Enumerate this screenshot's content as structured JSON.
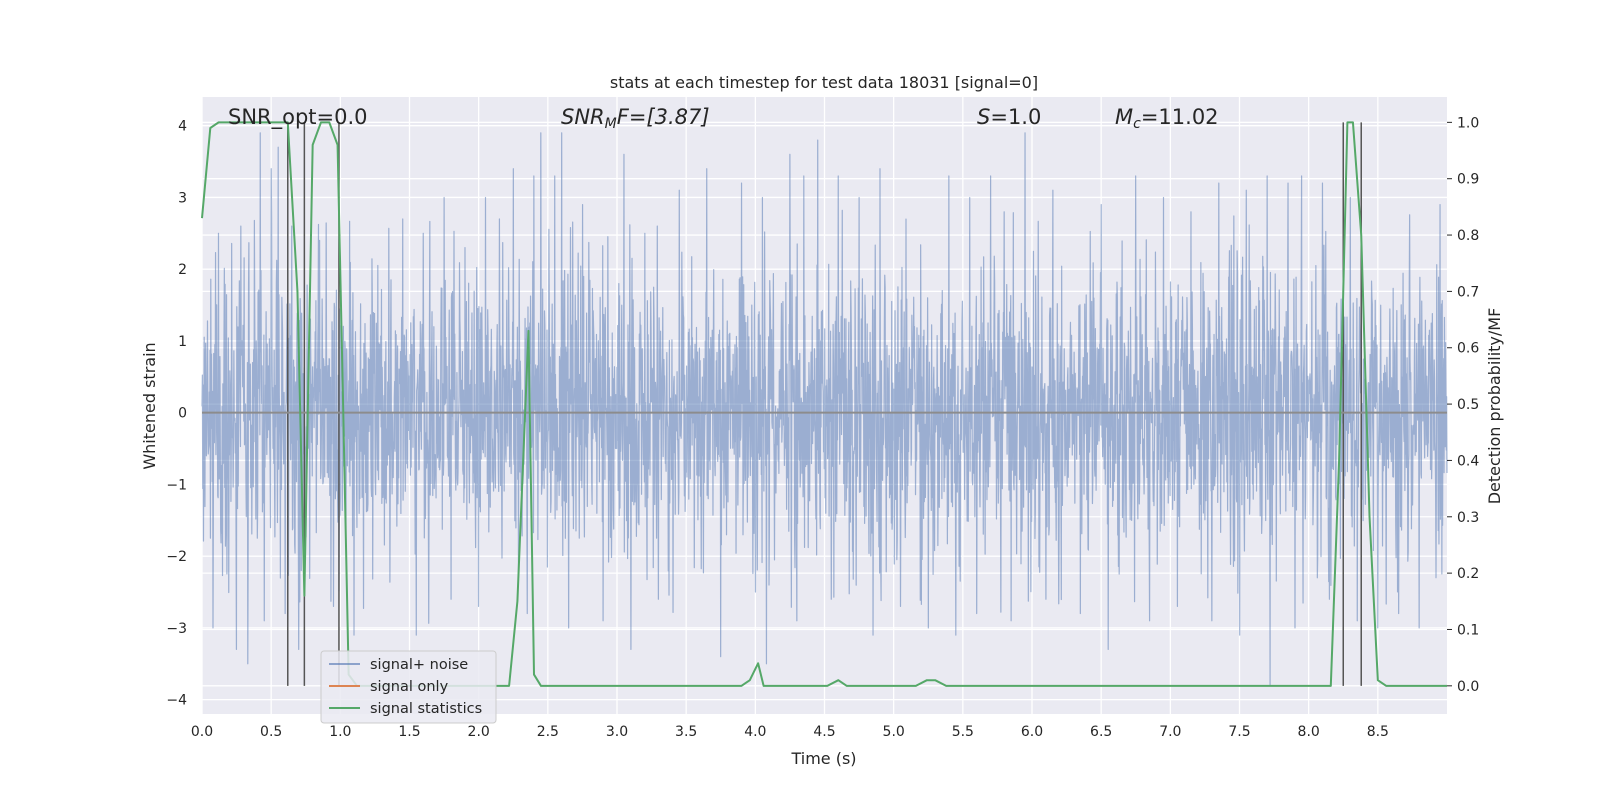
{
  "chart_data": {
    "type": "line",
    "title": "stats at each timestep for test data 18031 [signal=0]",
    "xlabel": "Time (s)",
    "ylabel_left": "Whitened strain",
    "ylabel_right": "Detection probability/MF",
    "xlim": [
      0.0,
      9.0
    ],
    "ylim_left": [
      -4.2,
      4.4
    ],
    "ylim_right": [
      -0.05,
      1.045
    ],
    "x_ticks": [
      "0.0",
      "0.5",
      "1.0",
      "1.5",
      "2.0",
      "2.5",
      "3.0",
      "3.5",
      "4.0",
      "4.5",
      "5.0",
      "5.5",
      "6.0",
      "6.5",
      "7.0",
      "7.5",
      "8.0",
      "8.5"
    ],
    "x_tick_values": [
      0.0,
      0.5,
      1.0,
      1.5,
      2.0,
      2.5,
      3.0,
      3.5,
      4.0,
      4.5,
      5.0,
      5.5,
      6.0,
      6.5,
      7.0,
      7.5,
      8.0,
      8.5
    ],
    "y_left_ticks": [
      "4",
      "3",
      "2",
      "1",
      "0",
      "−1",
      "−2",
      "−3",
      "−4"
    ],
    "y_left_tick_values": [
      4,
      3,
      2,
      1,
      0,
      -1,
      -2,
      -3,
      -4
    ],
    "y_right_ticks": [
      "1.0",
      "0.9",
      "0.8",
      "0.7",
      "0.6",
      "0.5",
      "0.4",
      "0.3",
      "0.2",
      "0.1",
      "0.0"
    ],
    "y_right_tick_values": [
      1.0,
      0.9,
      0.8,
      0.7,
      0.6,
      0.5,
      0.4,
      0.3,
      0.2,
      0.1,
      0.0
    ],
    "grid": true,
    "legend_position": "lower-left",
    "annotations": {
      "snr_opt": "SNR_opt=0.0",
      "snr_mf_base": "SNR",
      "snr_mf_sub": "M",
      "snr_mf_rest": "F=[3.87]",
      "s_italic": "S",
      "s_rest": "=1.0",
      "mc_base": "M",
      "mc_sub": "c",
      "mc_rest": "=11.02"
    },
    "series": [
      {
        "name": "signal+ noise",
        "axis": "left",
        "color": "#4c72b0",
        "style": "noise-band",
        "approx_abs_amplitude": 1.6,
        "peaks": [
          [
            0.12,
            2.5
          ],
          [
            0.28,
            2.6
          ],
          [
            0.33,
            3.0
          ],
          [
            0.42,
            3.9
          ],
          [
            0.5,
            3.4
          ],
          [
            0.55,
            3.7
          ],
          [
            0.65,
            2.6
          ],
          [
            0.85,
            2.4
          ],
          [
            1.1,
            2.3
          ],
          [
            1.45,
            2.7
          ],
          [
            1.6,
            2.5
          ],
          [
            1.75,
            3.0
          ],
          [
            1.9,
            2.3
          ],
          [
            2.05,
            3.0
          ],
          [
            2.15,
            2.7
          ],
          [
            2.25,
            3.4
          ],
          [
            2.4,
            3.3
          ],
          [
            2.45,
            3.9
          ],
          [
            2.55,
            3.3
          ],
          [
            2.6,
            3.9
          ],
          [
            2.75,
            2.9
          ],
          [
            2.9,
            3.1
          ],
          [
            3.05,
            3.6
          ],
          [
            3.2,
            2.5
          ],
          [
            3.3,
            3.3
          ],
          [
            3.45,
            3.1
          ],
          [
            3.65,
            3.4
          ],
          [
            3.9,
            3.2
          ],
          [
            4.05,
            3.0
          ],
          [
            4.25,
            3.6
          ],
          [
            4.35,
            3.3
          ],
          [
            4.45,
            3.8
          ],
          [
            4.6,
            3.3
          ],
          [
            4.75,
            3.0
          ],
          [
            4.9,
            3.4
          ],
          [
            5.05,
            2.9
          ],
          [
            5.25,
            3.1
          ],
          [
            5.4,
            3.3
          ],
          [
            5.55,
            3.0
          ],
          [
            5.7,
            3.3
          ],
          [
            5.8,
            2.8
          ],
          [
            5.95,
            3.9
          ],
          [
            6.15,
            3.1
          ],
          [
            6.35,
            3.2
          ],
          [
            6.5,
            2.9
          ],
          [
            6.75,
            3.3
          ],
          [
            6.95,
            3.0
          ],
          [
            7.15,
            2.8
          ],
          [
            7.35,
            3.2
          ],
          [
            7.55,
            3.1
          ],
          [
            7.7,
            3.3
          ],
          [
            7.85,
            3.2
          ],
          [
            7.95,
            3.3
          ],
          [
            8.1,
            3.2
          ],
          [
            8.3,
            3.0
          ],
          [
            8.5,
            2.9
          ],
          [
            8.65,
            3.2
          ],
          [
            8.8,
            3.3
          ],
          [
            8.95,
            2.9
          ]
        ],
        "troughs": [
          [
            0.08,
            -3.0
          ],
          [
            0.25,
            -3.3
          ],
          [
            0.33,
            -3.5
          ],
          [
            0.45,
            -2.9
          ],
          [
            0.6,
            -2.8
          ],
          [
            0.7,
            -3.3
          ],
          [
            0.95,
            -2.7
          ],
          [
            1.1,
            -3.1
          ],
          [
            1.55,
            -3.1
          ],
          [
            1.8,
            -2.6
          ],
          [
            2.0,
            -2.7
          ],
          [
            2.35,
            -2.8
          ],
          [
            2.65,
            -3.0
          ],
          [
            2.9,
            -2.9
          ],
          [
            3.1,
            -3.3
          ],
          [
            3.3,
            -2.6
          ],
          [
            3.75,
            -3.4
          ],
          [
            4.0,
            -2.5
          ],
          [
            4.08,
            -3.5
          ],
          [
            4.3,
            -2.9
          ],
          [
            4.55,
            -2.6
          ],
          [
            4.85,
            -3.1
          ],
          [
            5.05,
            -2.7
          ],
          [
            5.25,
            -3.0
          ],
          [
            5.45,
            -3.1
          ],
          [
            5.6,
            -2.8
          ],
          [
            5.85,
            -2.9
          ],
          [
            6.1,
            -2.6
          ],
          [
            6.35,
            -2.8
          ],
          [
            6.55,
            -3.3
          ],
          [
            6.85,
            -2.9
          ],
          [
            7.05,
            -2.7
          ],
          [
            7.3,
            -2.9
          ],
          [
            7.5,
            -3.1
          ],
          [
            7.72,
            -3.8
          ],
          [
            7.9,
            -3.0
          ],
          [
            8.15,
            -2.6
          ],
          [
            8.35,
            -2.9
          ],
          [
            8.5,
            -3.0
          ],
          [
            8.65,
            -2.8
          ],
          [
            8.8,
            -3.0
          ],
          [
            8.92,
            -2.3
          ]
        ]
      },
      {
        "name": "signal only",
        "axis": "left",
        "color": "#dd8452",
        "x": [
          0.0,
          9.0
        ],
        "y": [
          0.0,
          0.0
        ]
      },
      {
        "name": "signal statistics",
        "axis": "right",
        "color": "#55a868",
        "x": [
          0.0,
          0.06,
          0.12,
          0.6,
          0.62,
          0.69,
          0.74,
          0.8,
          0.86,
          0.92,
          0.98,
          1.02,
          1.06,
          1.12,
          1.5,
          2.22,
          2.28,
          2.36,
          2.4,
          2.45,
          2.5,
          3.9,
          3.96,
          4.02,
          4.06,
          4.12,
          4.18,
          4.52,
          4.6,
          4.66,
          4.74,
          5.16,
          5.24,
          5.3,
          5.38,
          8.16,
          8.22,
          8.28,
          8.32,
          8.38,
          8.44,
          8.5,
          8.56,
          9.0
        ],
        "y": [
          0.83,
          0.99,
          1.0,
          1.0,
          1.0,
          0.7,
          0.16,
          0.96,
          1.0,
          1.0,
          0.96,
          0.5,
          0.02,
          0.0,
          0.0,
          0.0,
          0.15,
          0.63,
          0.02,
          0.0,
          0.0,
          0.0,
          0.01,
          0.04,
          0.0,
          0.0,
          0.0,
          0.0,
          0.01,
          0.0,
          0.0,
          0.0,
          0.01,
          0.01,
          0.0,
          0.0,
          0.4,
          1.0,
          1.0,
          0.8,
          0.3,
          0.01,
          0.0,
          0.0
        ]
      }
    ],
    "vertical_markers": [
      0.62,
      0.74,
      0.99,
      8.25,
      8.38
    ]
  }
}
